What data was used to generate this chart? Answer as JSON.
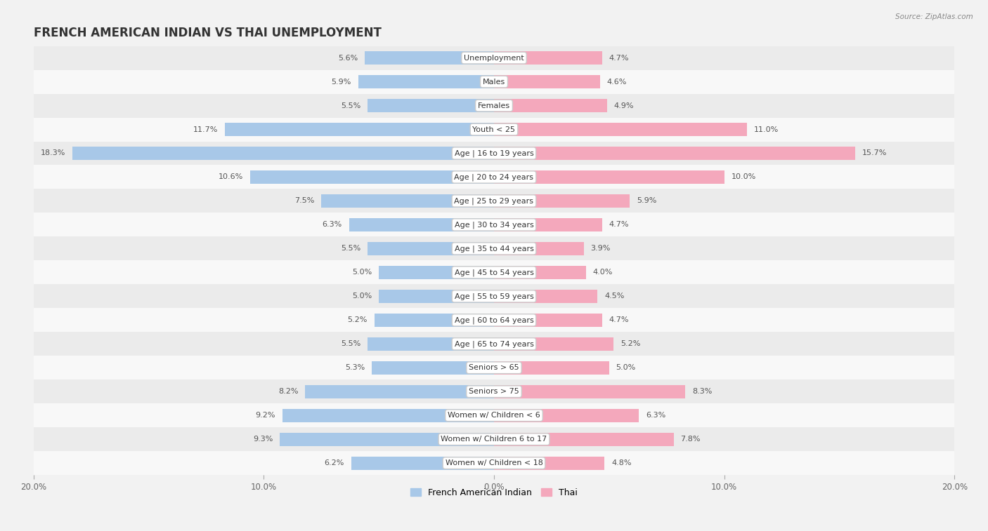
{
  "title": "FRENCH AMERICAN INDIAN VS THAI UNEMPLOYMENT",
  "source": "Source: ZipAtlas.com",
  "categories": [
    "Unemployment",
    "Males",
    "Females",
    "Youth < 25",
    "Age | 16 to 19 years",
    "Age | 20 to 24 years",
    "Age | 25 to 29 years",
    "Age | 30 to 34 years",
    "Age | 35 to 44 years",
    "Age | 45 to 54 years",
    "Age | 55 to 59 years",
    "Age | 60 to 64 years",
    "Age | 65 to 74 years",
    "Seniors > 65",
    "Seniors > 75",
    "Women w/ Children < 6",
    "Women w/ Children 6 to 17",
    "Women w/ Children < 18"
  ],
  "french_american_indian": [
    5.6,
    5.9,
    5.5,
    11.7,
    18.3,
    10.6,
    7.5,
    6.3,
    5.5,
    5.0,
    5.0,
    5.2,
    5.5,
    5.3,
    8.2,
    9.2,
    9.3,
    6.2
  ],
  "thai": [
    4.7,
    4.6,
    4.9,
    11.0,
    15.7,
    10.0,
    5.9,
    4.7,
    3.9,
    4.0,
    4.5,
    4.7,
    5.2,
    5.0,
    8.3,
    6.3,
    7.8,
    4.8
  ],
  "color_french": "#a8c8e8",
  "color_thai": "#f4a8bc",
  "background_color": "#f2f2f2",
  "row_bg_odd": "#ebebeb",
  "row_bg_even": "#f8f8f8",
  "xlim": 20.0,
  "legend_label_french": "French American Indian",
  "legend_label_thai": "Thai",
  "title_fontsize": 12,
  "label_fontsize": 8,
  "value_fontsize": 8,
  "bar_height": 0.55
}
